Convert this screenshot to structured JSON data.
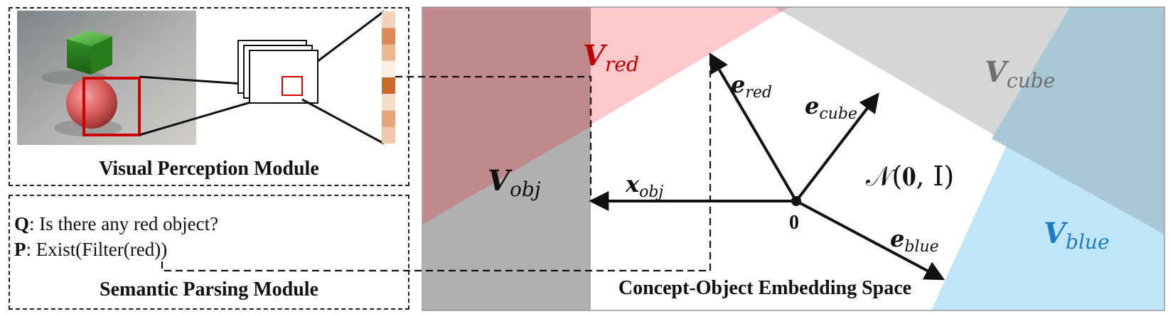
{
  "visual_module": {
    "title": "Visual Perception Module"
  },
  "semantic_module": {
    "title": "Semantic Parsing Module",
    "question_prefix": "Q",
    "question_text": ": Is there any red object?",
    "program_prefix": "P",
    "program_text": ": Exist(Filter(red))"
  },
  "embedding_space": {
    "title": "Concept-Object Embedding Space",
    "origin_label": "0",
    "distribution_label": "𝒩(𝟎, I)",
    "regions": {
      "red": {
        "base": "V",
        "sub": "red"
      },
      "cube": {
        "base": "V",
        "sub": "cube"
      },
      "blue": {
        "base": "V",
        "sub": "blue"
      },
      "obj": {
        "base": "V",
        "sub": "obj"
      }
    },
    "vectors": {
      "red": {
        "base": "e",
        "sub": "red"
      },
      "cube": {
        "base": "e",
        "sub": "cube"
      },
      "blue": {
        "base": "e",
        "sub": "blue"
      },
      "obj": {
        "base": "x",
        "sub": "obj"
      }
    }
  },
  "colors": {
    "red_region": "#ffc8cc",
    "cube_region": "#d6d6d6",
    "blue_region": "#bfe6f6",
    "overlap_red_cube": "#d9aaad",
    "overlap_cube_blue": "#a9c8d6",
    "obj_region": "#b0b0b0",
    "obj_red_overlap": "#c08a8c",
    "red_label": "#c00000",
    "cube_label": "#6e6e6e",
    "blue_label": "#1f7ac8",
    "bbox": "#cc0000",
    "feature_strip": [
      "#f2d2bc",
      "#dc8a56",
      "#ecb893",
      "#fbeee5",
      "#c86a2a",
      "#f6dccb",
      "#e6a57c",
      "#f1c8ab"
    ]
  }
}
